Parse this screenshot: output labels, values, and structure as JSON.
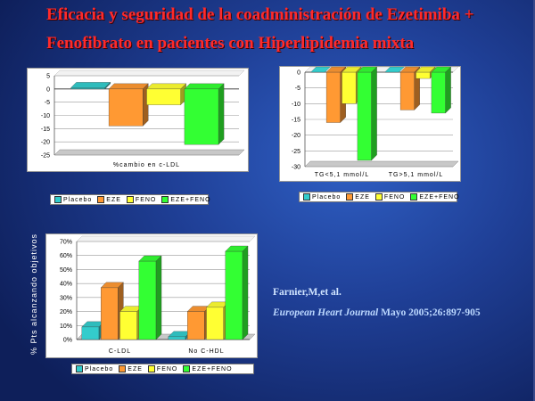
{
  "title_line1": "Eficacia y seguridad de la coadministración de Ezetimiba +",
  "title_line2": "Fenofibrato en pacientes con Hiperlipidemia mixta",
  "series_colors": {
    "Placebo": "#33cccc",
    "EZE": "#ff9933",
    "FENO": "#ffff33",
    "EZE+FENO": "#33ff33"
  },
  "legend_labels": [
    "Placebo",
    "EZE",
    "FENO",
    "EZE+FENO"
  ],
  "reference": {
    "authors": "Farnier,M,et al.",
    "journal": "European Heart Journal",
    "details": " Mayo 2005;26:897-905"
  },
  "chart_data": [
    {
      "type": "bar",
      "categories": [
        "%cambio en c-LDL"
      ],
      "series": [
        {
          "name": "Placebo",
          "values": [
            0.5
          ]
        },
        {
          "name": "EZE",
          "values": [
            -14
          ]
        },
        {
          "name": "FENO",
          "values": [
            -6
          ]
        },
        {
          "name": "EZE+FENO",
          "values": [
            -21
          ]
        }
      ],
      "ylim": [
        -25,
        5
      ],
      "yticks": [
        "5",
        "0",
        "-5",
        "-10",
        "-15",
        "-20",
        "-25"
      ],
      "xlabel": "",
      "ylabel": "",
      "grid": true,
      "legend": "bottom"
    },
    {
      "type": "bar",
      "categories": [
        "TG<5,1 mmol/L",
        "TG>5,1 mmol/L"
      ],
      "series": [
        {
          "name": "Placebo",
          "values": [
            0,
            0
          ]
        },
        {
          "name": "EZE",
          "values": [
            -16,
            -12
          ]
        },
        {
          "name": "FENO",
          "values": [
            -10,
            -2
          ]
        },
        {
          "name": "EZE+FENO",
          "values": [
            -28,
            -13
          ]
        }
      ],
      "ylim": [
        -30,
        0
      ],
      "yticks": [
        "0",
        "-5",
        "-10",
        "-15",
        "-20",
        "-25",
        "-30"
      ],
      "xlabel": "",
      "ylabel": "",
      "grid": true,
      "legend": "bottom"
    },
    {
      "type": "bar",
      "categories": [
        "C-LDL",
        "No C-HDL"
      ],
      "series": [
        {
          "name": "Placebo",
          "values": [
            9,
            2
          ]
        },
        {
          "name": "EZE",
          "values": [
            37,
            20
          ]
        },
        {
          "name": "FENO",
          "values": [
            20,
            23
          ]
        },
        {
          "name": "EZE+FENO",
          "values": [
            56,
            63
          ]
        }
      ],
      "ylim": [
        0,
        70
      ],
      "yticks": [
        "70%",
        "60%",
        "50%",
        "40%",
        "30%",
        "20%",
        "10%",
        "0%"
      ],
      "xlabel": "",
      "ylabel": "% Pts alcanzando objetivos",
      "grid": true,
      "legend": "bottom"
    }
  ]
}
